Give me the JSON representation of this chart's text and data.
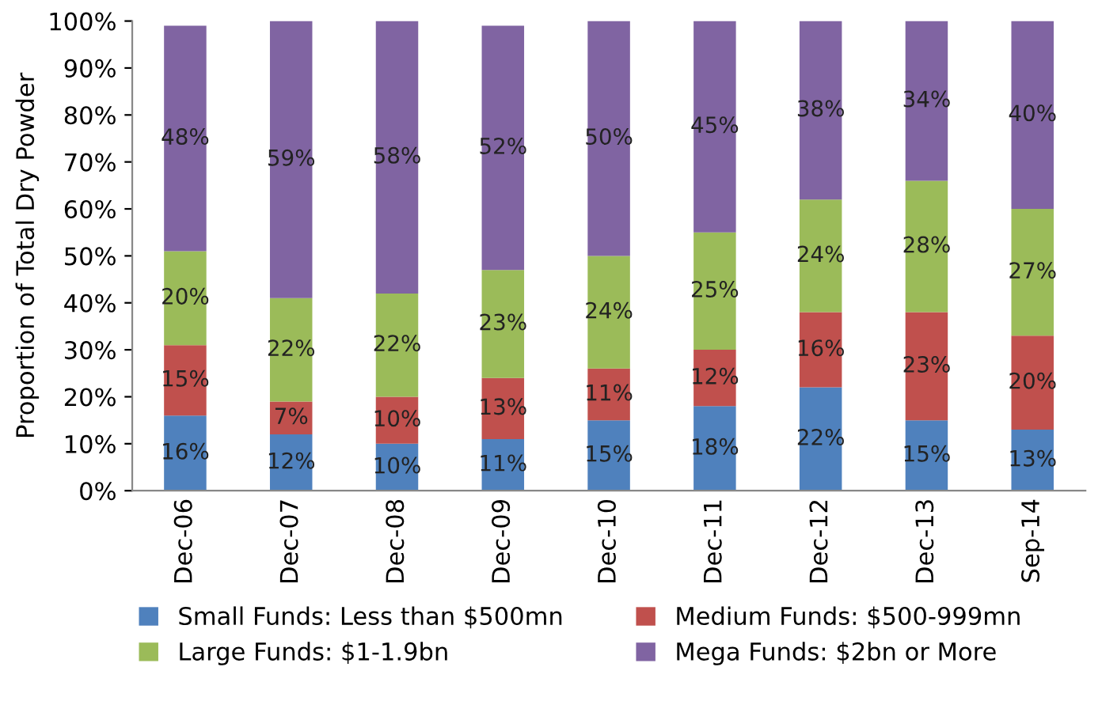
{
  "chart_data": {
    "type": "bar",
    "stacked": true,
    "ylabel": "Proportion of Total Dry Powder",
    "categories": [
      "Dec-06",
      "Dec-07",
      "Dec-08",
      "Dec-09",
      "Dec-10",
      "Dec-11",
      "Dec-12",
      "Dec-13",
      "Sep-14"
    ],
    "series": [
      {
        "name": "Small Funds: Less than $500mn",
        "color": "#4f81bd",
        "values": [
          16,
          12,
          10,
          11,
          15,
          18,
          22,
          15,
          13
        ],
        "value_labels": [
          "16%",
          "12%",
          "10%",
          "11%",
          "15%",
          "18%",
          "22%",
          "15%",
          "13%"
        ]
      },
      {
        "name": "Medium Funds: $500-999mn",
        "color": "#c0504d",
        "values": [
          15,
          7,
          10,
          13,
          11,
          12,
          16,
          23,
          20
        ],
        "value_labels": [
          "15%",
          "7%",
          "10%",
          "13%",
          "11%",
          "12%",
          "16%",
          "23%",
          "20%"
        ]
      },
      {
        "name": "Large Funds: $1-1.9bn",
        "color": "#9bbb59",
        "values": [
          20,
          22,
          22,
          23,
          24,
          25,
          24,
          28,
          27
        ],
        "value_labels": [
          "20%",
          "22%",
          "22%",
          "23%",
          "24%",
          "25%",
          "24%",
          "28%",
          "27%"
        ]
      },
      {
        "name": "Mega Funds: $2bn or More",
        "color": "#8064a2",
        "values": [
          48,
          59,
          58,
          52,
          50,
          45,
          38,
          34,
          40
        ],
        "value_labels": [
          "48%",
          "59%",
          "58%",
          "52%",
          "50%",
          "45%",
          "38%",
          "34%",
          "40%"
        ]
      }
    ],
    "ylim": [
      0,
      100
    ],
    "yticks": [
      {
        "value": 0,
        "label": "0%"
      },
      {
        "value": 10,
        "label": "10%"
      },
      {
        "value": 20,
        "label": "20%"
      },
      {
        "value": 30,
        "label": "30%"
      },
      {
        "value": 40,
        "label": "40%"
      },
      {
        "value": 50,
        "label": "50%"
      },
      {
        "value": 60,
        "label": "60%"
      },
      {
        "value": 70,
        "label": "70%"
      },
      {
        "value": 80,
        "label": "80%"
      },
      {
        "value": 90,
        "label": "90%"
      },
      {
        "value": 100,
        "label": "100%"
      }
    ],
    "legend": "bottom",
    "grid": false
  }
}
